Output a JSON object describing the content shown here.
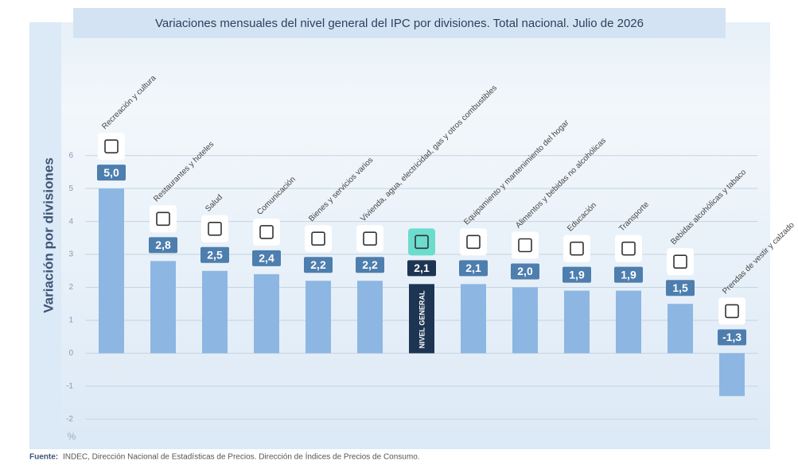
{
  "chart_data": {
    "type": "bar",
    "title": "Variaciones mensuales del nivel general del IPC por divisiones. Total nacional. Julio de 2026",
    "y_label": "Variación por divisiones",
    "y_unit": "%",
    "categories": [
      "Recreación y cultura",
      "Restaurantes y hoteles",
      "Salud",
      "Comunicación",
      "Bienes y servicios varios",
      "Vivienda, agua, electricidad, gas y otros combustibles",
      "NIVEL GENERAL",
      "Equipamiento y mantenimiento del hogar",
      "Alimentos y bebidas no alcohólicas",
      "Educación",
      "Transporte",
      "Bebidas alcohólicas y tabaco",
      "Prendas de vestir y calzado"
    ],
    "values": [
      5.0,
      2.8,
      2.5,
      2.4,
      2.2,
      2.2,
      2.1,
      2.1,
      2.0,
      1.9,
      1.9,
      1.5,
      -1.3
    ],
    "value_labels": [
      "5,0",
      "2,8",
      "2,5",
      "2,4",
      "2,2",
      "2,2",
      "2,1",
      "2,1",
      "2,0",
      "1,9",
      "1,9",
      "1,5",
      "-1,3"
    ],
    "color": "#8db7e2",
    "colors": [
      "#8db7e2",
      "#8db7e2",
      "#8db7e2",
      "#8db7e2",
      "#8db7e2",
      "#8db7e2",
      "#1d3552",
      "#8db7e2",
      "#8db7e2",
      "#8db7e2",
      "#8db7e2",
      "#8db7e2",
      "#8db7e2"
    ],
    "ylim": [
      -2.5,
      6.5
    ],
    "yticks": [
      -2,
      -1,
      0,
      1,
      2,
      3,
      4,
      5,
      6
    ],
    "grid": true,
    "source_label": "Fuente:",
    "source": "INDEC, Dirección Nacional de Estadísticas de Precios. Dirección de Índices de Precios de Consumo."
  }
}
